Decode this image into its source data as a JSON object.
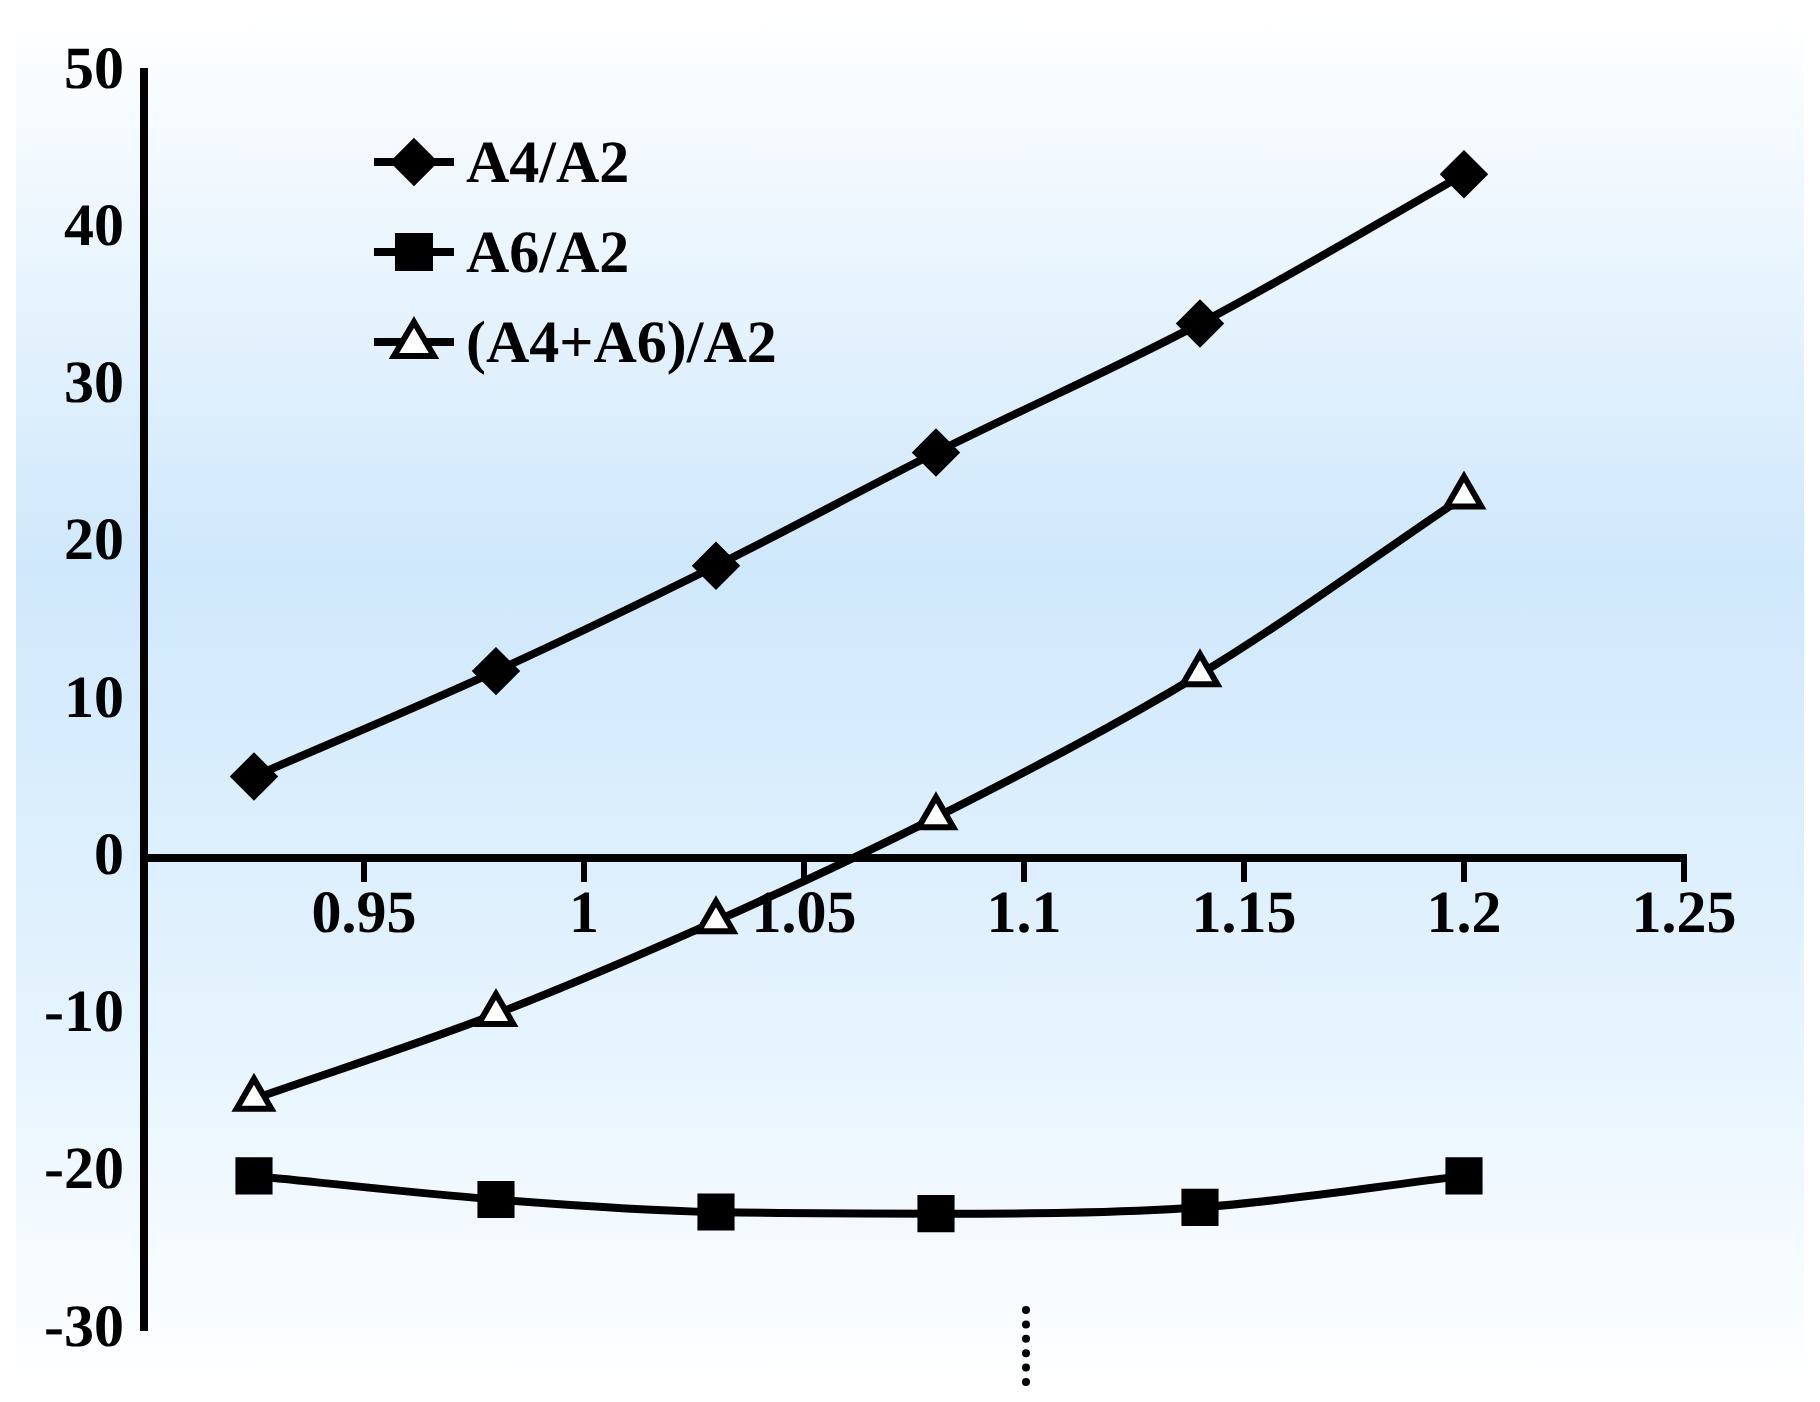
{
  "chart_data": {
    "type": "line",
    "xlim": [
      0.9,
      1.25
    ],
    "xticks": [
      0.95,
      1,
      1.05,
      1.1,
      1.15,
      1.2,
      1.25
    ],
    "ylim": [
      -30,
      50
    ],
    "yticks": [
      -30,
      -20,
      -10,
      0,
      10,
      20,
      30,
      40,
      50
    ],
    "legend": "top left",
    "series": [
      {
        "name": "A4/A2",
        "color": "#000000",
        "marker": "diamond",
        "x": [
          0.925,
          0.98,
          1.03,
          1.08,
          1.14,
          1.2
        ],
        "values": [
          5.2,
          11.9,
          18.6,
          25.8,
          34.0,
          43.5
        ]
      },
      {
        "name": "A6/A2",
        "color": "#000000",
        "marker": "square",
        "x": [
          0.925,
          0.98,
          1.03,
          1.08,
          1.14,
          1.2
        ],
        "values": [
          -20.2,
          -21.7,
          -22.5,
          -22.6,
          -22.2,
          -20.2
        ]
      },
      {
        "name": "(A4+A6)/A2",
        "color": "#000000",
        "marker": "triangle",
        "x": [
          0.925,
          0.98,
          1.03,
          1.08,
          1.14,
          1.2
        ],
        "values": [
          -15.3,
          -9.9,
          -4.0,
          2.6,
          11.7,
          23.0
        ]
      }
    ]
  }
}
